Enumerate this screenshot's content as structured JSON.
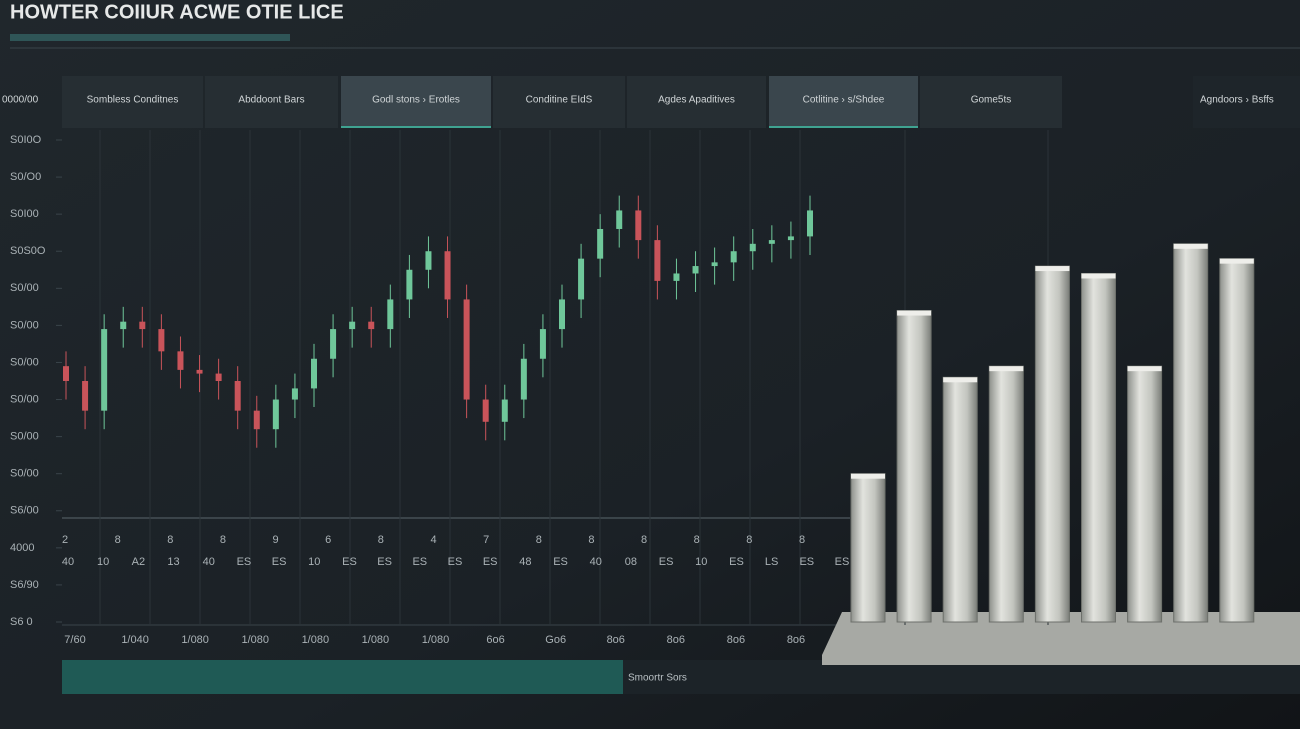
{
  "header": {
    "title": "HOWTER COIIUR ACWE OTIE LICE"
  },
  "tabs": {
    "side_label": "0000/00",
    "items": [
      "Sombless Conditnes",
      "Abddoont Bars",
      "Godl stons › Erotles",
      "Conditine EIdS",
      "Agdes Apaditives",
      "Cotlitine › s/Shdee",
      "Gome5ts"
    ],
    "right": "Agndoors › Bsffs"
  },
  "chart_data": {
    "type": "candlestick",
    "ylim": [
      0,
      13
    ],
    "yticks": [
      {
        "value": 13,
        "label": "S0I0O"
      },
      {
        "value": 12,
        "label": "S0/O0"
      },
      {
        "value": 11,
        "label": "S0I00"
      },
      {
        "value": 10,
        "label": "S0S0O"
      },
      {
        "value": 9,
        "label": "S0/00"
      },
      {
        "value": 8,
        "label": "S0/00"
      },
      {
        "value": 7,
        "label": "S0/00"
      },
      {
        "value": 6,
        "label": "S0/00"
      },
      {
        "value": 5,
        "label": "S0/00"
      },
      {
        "value": 4,
        "label": "S0/00"
      },
      {
        "value": 3,
        "label": "S6/00"
      },
      {
        "value": 2,
        "label": "4000"
      },
      {
        "value": 1,
        "label": "S6/90"
      },
      {
        "value": 0,
        "label": "S6 0"
      }
    ],
    "x_label_rows": [
      [
        "2",
        "8",
        "8",
        "8",
        "9",
        "6",
        "8",
        "4",
        "7",
        "8",
        "8",
        "8",
        "8",
        "8",
        "8"
      ],
      [
        "40",
        "10",
        "A2",
        "13",
        "40",
        "ES",
        "ES",
        "10",
        "ES",
        "ES",
        "ES",
        "ES",
        "ES",
        "48",
        "ES",
        "40",
        "08",
        "ES",
        "10",
        "ES",
        "LS",
        "ES",
        "ES"
      ],
      [
        "7/60",
        "1/040",
        "1/080",
        "1/080",
        "1/080",
        "1/080",
        "1/080",
        "6o6",
        "Go6",
        "8o6",
        "8o6",
        "8o6",
        "8o6"
      ]
    ],
    "up_color": "#6fc79a",
    "down_color": "#c9545a",
    "open": [
      6.9,
      6.5,
      5.7,
      7.9,
      8.1,
      7.9,
      7.3,
      6.8,
      6.7,
      6.5,
      5.7,
      5.2,
      6.0,
      6.3,
      7.1,
      7.9,
      8.1,
      7.9,
      8.7,
      9.5,
      10.0,
      8.7,
      6.0,
      5.4,
      6.0,
      7.1,
      7.9,
      8.7,
      9.8,
      10.6,
      11.1,
      10.3,
      9.2,
      9.4,
      9.6,
      9.7,
      10.0,
      10.2,
      10.3,
      10.4
    ],
    "high": [
      7.3,
      6.9,
      8.3,
      8.5,
      8.5,
      8.3,
      7.7,
      7.2,
      7.1,
      6.9,
      6.1,
      6.4,
      6.7,
      7.5,
      8.3,
      8.5,
      8.5,
      9.1,
      9.9,
      10.4,
      10.4,
      9.1,
      6.4,
      6.4,
      7.5,
      8.3,
      9.1,
      10.2,
      11.0,
      11.5,
      11.5,
      10.7,
      9.8,
      10.0,
      10.1,
      10.4,
      10.6,
      10.7,
      10.8,
      11.5
    ],
    "low": [
      6.0,
      5.2,
      5.2,
      7.4,
      7.4,
      6.8,
      6.3,
      6.2,
      6.0,
      5.2,
      4.7,
      4.7,
      5.5,
      5.8,
      6.6,
      7.4,
      7.4,
      7.4,
      8.2,
      9.0,
      8.2,
      5.5,
      4.9,
      4.9,
      5.5,
      6.6,
      7.4,
      8.2,
      9.3,
      10.1,
      9.8,
      8.7,
      8.7,
      8.9,
      9.1,
      9.2,
      9.5,
      9.7,
      9.8,
      9.9
    ],
    "close": [
      6.5,
      5.7,
      7.9,
      8.1,
      7.9,
      7.3,
      6.8,
      6.7,
      6.5,
      5.7,
      5.2,
      6.0,
      6.3,
      7.1,
      7.9,
      8.1,
      7.9,
      8.7,
      9.5,
      10.0,
      8.7,
      6.0,
      5.4,
      6.0,
      7.1,
      7.9,
      8.7,
      9.8,
      10.6,
      11.1,
      10.3,
      9.2,
      9.4,
      9.6,
      9.7,
      10.0,
      10.2,
      10.3,
      10.4,
      11.1
    ],
    "bars": {
      "values": [
        4.0,
        8.4,
        6.6,
        6.9,
        9.6,
        9.4,
        6.9,
        10.2,
        9.8
      ],
      "color": "#c9cbc4"
    }
  },
  "footer": {
    "label": "Smoortr Sors"
  }
}
